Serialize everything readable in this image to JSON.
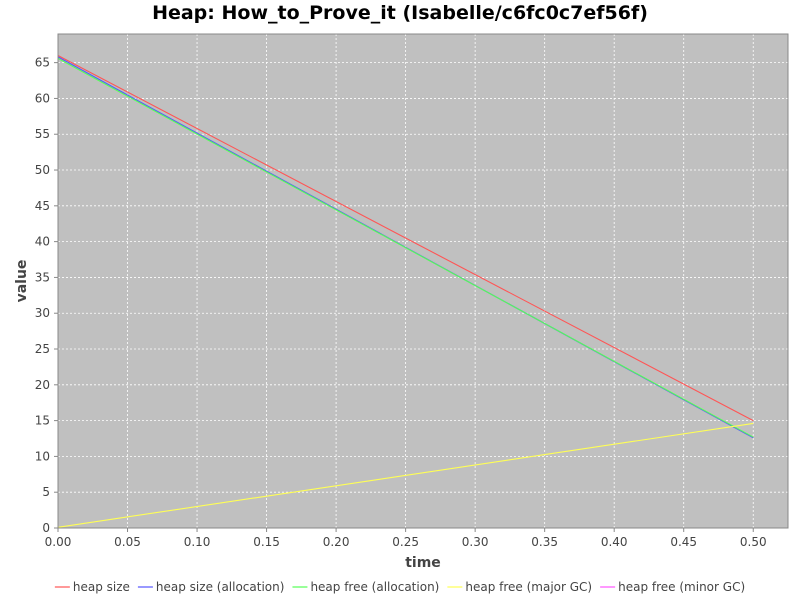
{
  "chart_data": {
    "type": "line",
    "title": "Heap: How_to_Prove_it (Isabelle/c6fc0c7ef56f)",
    "xlabel": "time",
    "ylabel": "value",
    "xlim": [
      0.0,
      0.525
    ],
    "ylim": [
      0,
      69
    ],
    "x_ticks": [
      "0.00",
      "0.05",
      "0.10",
      "0.15",
      "0.20",
      "0.25",
      "0.30",
      "0.35",
      "0.40",
      "0.45",
      "0.50"
    ],
    "y_ticks": [
      "0",
      "5",
      "10",
      "15",
      "20",
      "25",
      "30",
      "35",
      "40",
      "45",
      "50",
      "55",
      "60",
      "65"
    ],
    "grid": true,
    "background": "#c0c0c0",
    "legend_position": "bottom",
    "series": [
      {
        "name": "heap size",
        "color": "#ff5555",
        "x": [
          0.0,
          0.5
        ],
        "y": [
          66.0,
          15.0
        ]
      },
      {
        "name": "heap size (allocation)",
        "color": "#5555ff",
        "x": [
          0.0,
          0.5
        ],
        "y": [
          65.8,
          12.6
        ]
      },
      {
        "name": "heap free (allocation)",
        "color": "#55ff55",
        "x": [
          0.0,
          0.5
        ],
        "y": [
          65.6,
          12.7
        ]
      },
      {
        "name": "heap free (major GC)",
        "color": "#ffff55",
        "x": [
          0.0,
          0.5
        ],
        "y": [
          0.1,
          14.6
        ]
      },
      {
        "name": "heap free (minor GC)",
        "color": "#ff55ff",
        "x": [],
        "y": []
      }
    ]
  }
}
